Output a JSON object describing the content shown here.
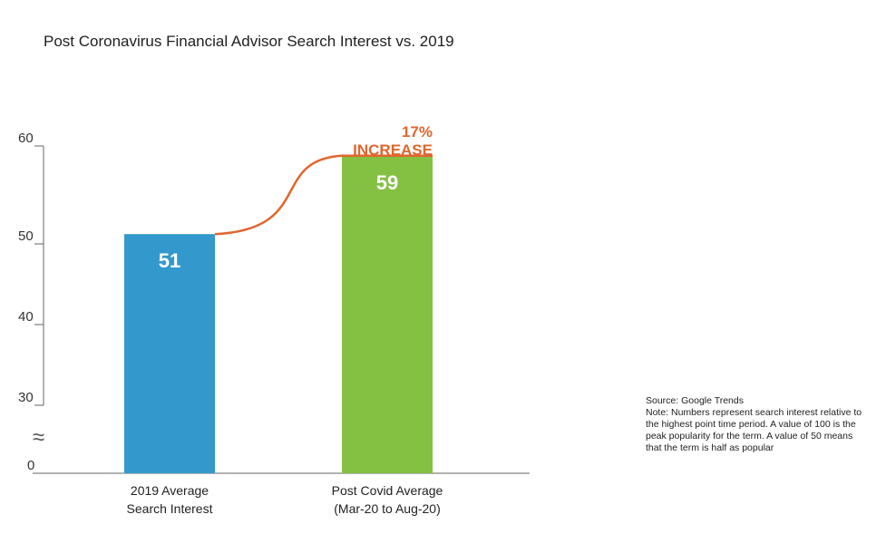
{
  "chart_data": {
    "type": "bar",
    "title": "Post Coronavirus Financial Advisor Search Interest vs. 2019",
    "categories": [
      [
        "2019 Average",
        "Search Interest"
      ],
      [
        "Post Covid Average",
        "(Mar-20 to Aug-20)"
      ]
    ],
    "values": [
      51,
      59
    ],
    "value_labels": [
      "51",
      "59"
    ],
    "colors": [
      "#3399cc",
      "#84c042"
    ],
    "y_ticks": [
      {
        "value": 30,
        "label": "30"
      },
      {
        "value": 40,
        "label": "40"
      },
      {
        "value": 50,
        "label": "50"
      },
      {
        "value": 60,
        "label": "60"
      }
    ],
    "y_zero_label": "0",
    "axis_break_symbol": "≈",
    "ylim": [
      30,
      60
    ],
    "annotation": {
      "lines": [
        "17%",
        "INCREASE"
      ],
      "color": "#e0662e"
    }
  },
  "notes": {
    "source": "Source: Google Trends",
    "note": "Note: Numbers represent search interest relative to the highest point time period. A value of 100 is the peak popularity for the term. A value of 50 means that the term is half as popular"
  }
}
